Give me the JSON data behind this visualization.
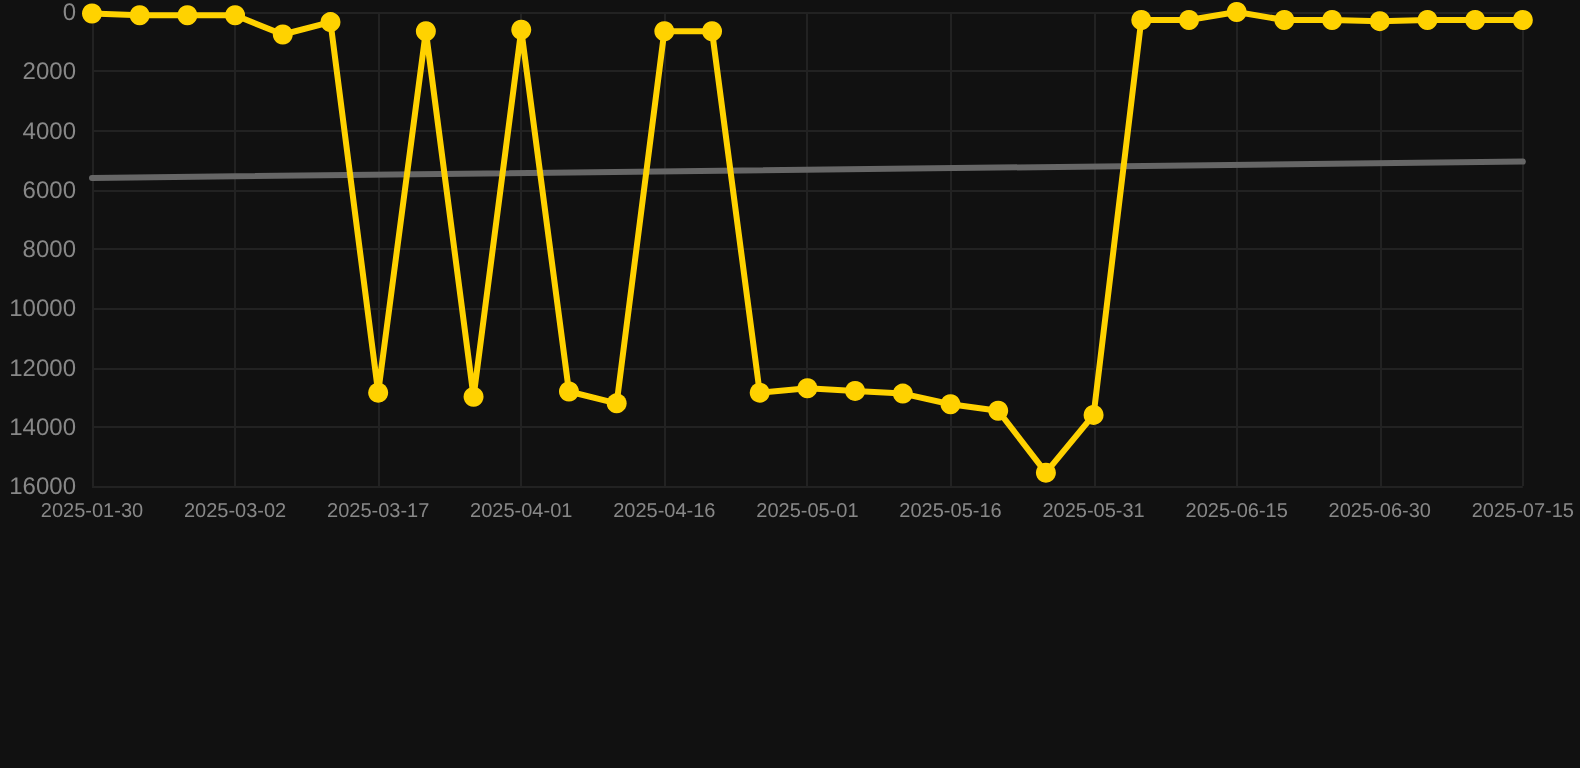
{
  "chart_data": {
    "type": "line",
    "categories": [
      "2025-01-30",
      null,
      null,
      "2025-03-02",
      null,
      null,
      "2025-03-17",
      null,
      null,
      "2025-04-01",
      null,
      null,
      "2025-04-16",
      null,
      null,
      "2025-05-01",
      null,
      null,
      "2025-05-16",
      null,
      null,
      "2025-05-31",
      null,
      null,
      "2025-06-15",
      null,
      null,
      "2025-06-30",
      null,
      null,
      "2025-07-15"
    ],
    "series": [
      {
        "color": "#ffd200",
        "values": [
          50,
          110,
          110,
          110,
          760,
          340,
          12850,
          650,
          12990,
          600,
          12810,
          13210,
          650,
          650,
          12850,
          12700,
          12790,
          12880,
          13240,
          13460,
          15550,
          13600,
          270,
          270,
          0,
          270,
          270,
          310,
          270,
          270,
          270
        ]
      },
      {
        "color": "#666666",
        "marker": "none",
        "values": [
          5600,
          null,
          null,
          null,
          null,
          null,
          null,
          null,
          null,
          null,
          null,
          null,
          null,
          null,
          null,
          null,
          null,
          null,
          null,
          null,
          null,
          null,
          null,
          null,
          null,
          null,
          null,
          null,
          null,
          null,
          5050
        ]
      }
    ],
    "ylim": [
      16000,
      0
    ],
    "yticks": [
      0,
      2000,
      4000,
      6000,
      8000,
      10000,
      12000,
      14000,
      16000
    ],
    "grid": true,
    "marker": "circle",
    "line_style": "solid"
  }
}
